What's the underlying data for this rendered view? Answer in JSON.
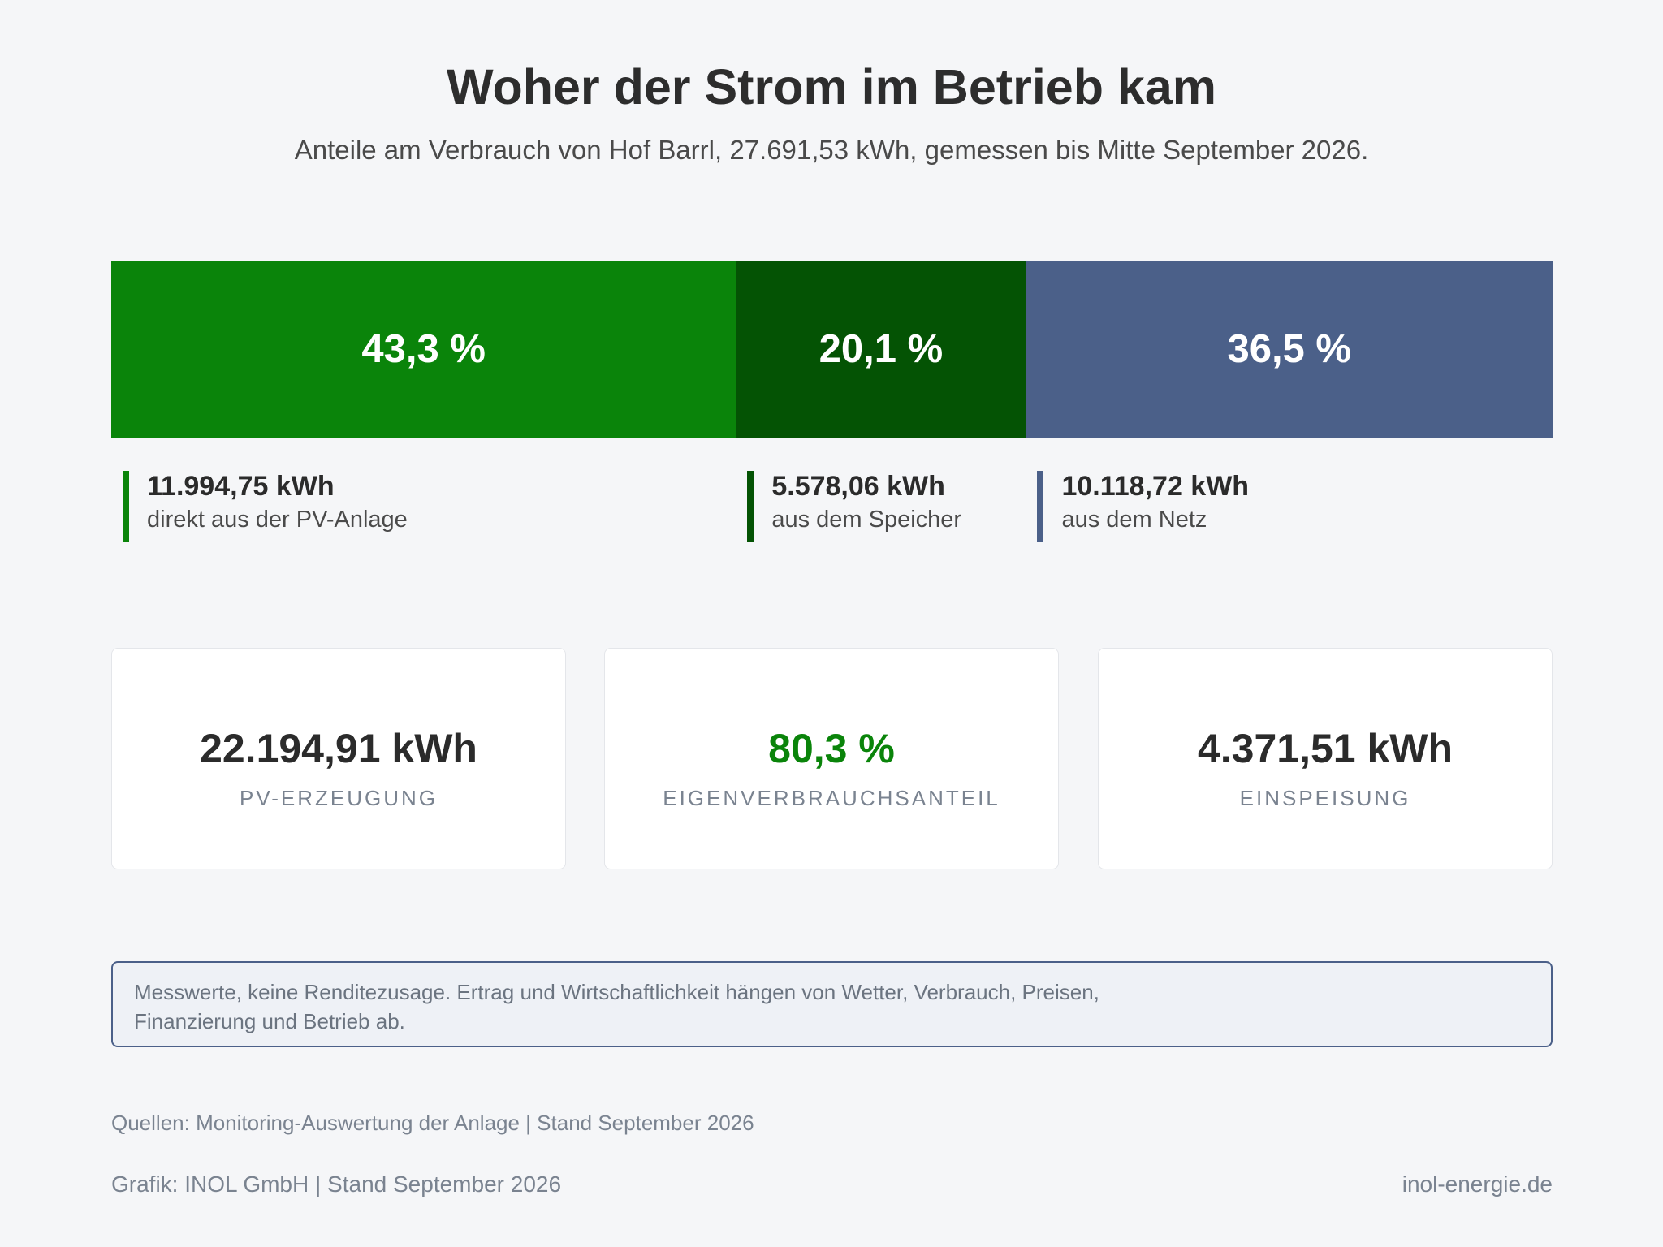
{
  "header": {
    "title": "Woher der Strom im Betrieb kam",
    "subtitle": "Anteile am Verbrauch von Hof Barrl, 27.691,53 kWh, gemessen bis Mitte September 2026."
  },
  "chart_data": {
    "type": "bar",
    "orientation": "horizontal-stacked",
    "title": "Woher der Strom im Betrieb kam",
    "total_kwh": "27.691,53 kWh",
    "segments": [
      {
        "key": "pv",
        "percent": 43.3,
        "percent_label": "43,3 %",
        "kwh_label": "11.994,75 kWh",
        "label": "direkt aus der PV-Anlage",
        "color": "#0a840a"
      },
      {
        "key": "storage",
        "percent": 20.1,
        "percent_label": "20,1 %",
        "kwh_label": "5.578,06 kWh",
        "label": "aus dem Speicher",
        "color": "#045304"
      },
      {
        "key": "grid",
        "percent": 36.5,
        "percent_label": "36,5 %",
        "kwh_label": "10.118,72 kWh",
        "label": "aus dem Netz",
        "color": "#4b6089"
      }
    ]
  },
  "kpis": [
    {
      "value": "22.194,91 kWh",
      "label": "PV-ERZEUGUNG",
      "color": "#2b2b2b"
    },
    {
      "value": "80,3 %",
      "label": "EIGENVERBRAUCHSANTEIL",
      "color": "#0a840a"
    },
    {
      "value": "4.371,51 kWh",
      "label": "EINSPEISUNG",
      "color": "#2b2b2b"
    }
  ],
  "note": {
    "line1": "Messwerte, keine Renditezusage. Ertrag und Wirtschaftlichkeit hängen von Wetter, Verbrauch, Preisen,",
    "line2": "Finanzierung und Betrieb ab."
  },
  "footer": {
    "sources": "Quellen: Monitoring-Auswertung der Anlage | Stand September 2026",
    "credit": "Grafik: INOL GmbH | Stand September 2026",
    "website": "inol-energie.de"
  }
}
